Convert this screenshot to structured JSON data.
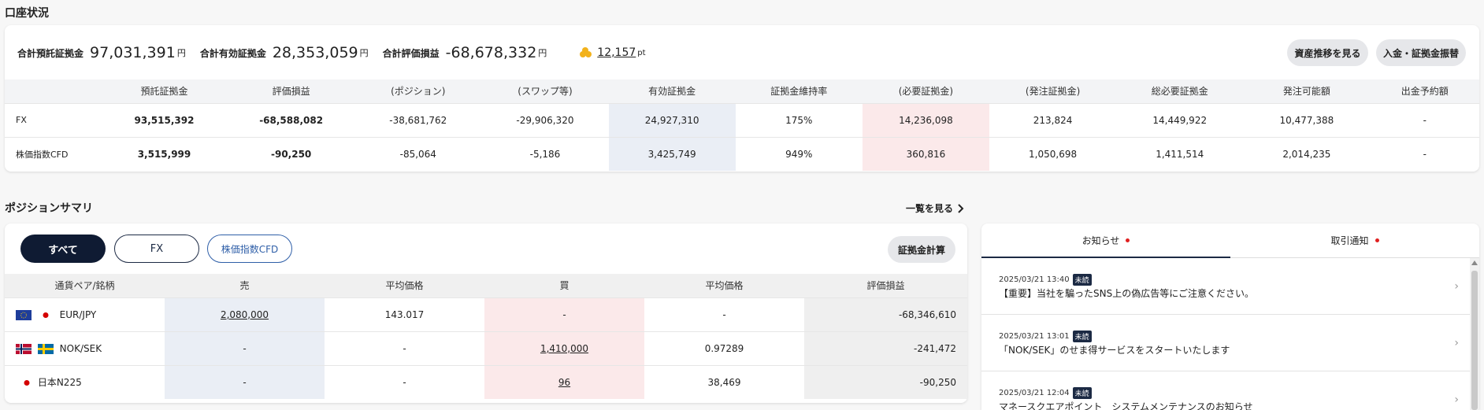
{
  "account": {
    "title": "口座状況",
    "summary": [
      {
        "label": "合計預託証拠金",
        "value": "97,031,391",
        "unit": "円"
      },
      {
        "label": "合計有効証拠金",
        "value": "28,353,059",
        "unit": "円"
      },
      {
        "label": "合計評価損益",
        "value": "-68,678,332",
        "unit": "円"
      }
    ],
    "points": {
      "value": "12,157",
      "unit": "pt",
      "icon": "coins-icon"
    },
    "buttons": {
      "asset_history": "資産推移を見る",
      "deposit_transfer": "入金・証拠金振替"
    },
    "headers": [
      "",
      "預託証拠金",
      "評価損益",
      "(ポジション)",
      "(スワップ等)",
      "有効証拠金",
      "証拠金維持率",
      "(必要証拠金)",
      "(発注証拠金)",
      "総必要証拠金",
      "発注可能額",
      "出金予約額"
    ],
    "rows": [
      {
        "name": "FX",
        "cells": [
          "93,515,392",
          "-68,588,082",
          "-38,681,762",
          "-29,906,320",
          "24,927,310",
          "175%",
          "14,236,098",
          "213,824",
          "14,449,922",
          "10,477,388",
          "-"
        ]
      },
      {
        "name": "株価指数CFD",
        "cells": [
          "3,515,999",
          "-90,250",
          "-85,064",
          "-5,186",
          "3,425,749",
          "949%",
          "360,816",
          "1,050,698",
          "1,411,514",
          "2,014,235",
          "-"
        ]
      }
    ]
  },
  "positions": {
    "title": "ポジションサマリ",
    "view_all": "一覧を見る",
    "filters": {
      "all": "すべて",
      "fx": "FX",
      "cfd": "株価指数CFD"
    },
    "calc_button": "証拠金計算",
    "headers": [
      "通貨ペア/銘柄",
      "売",
      "平均価格",
      "買",
      "平均価格",
      "評価損益"
    ],
    "rows": [
      {
        "pair": "EUR/JPY",
        "sell": "2,080,000",
        "sell_avg": "143.017",
        "buy": "-",
        "buy_avg": "-",
        "pl": "-68,346,610"
      },
      {
        "pair": "NOK/SEK",
        "sell": "-",
        "sell_avg": "-",
        "buy": "1,410,000",
        "buy_avg": "0.97289",
        "pl": "-241,472"
      },
      {
        "pair": "日本N225",
        "sell": "-",
        "sell_avg": "-",
        "buy": "96",
        "buy_avg": "38,469",
        "pl": "-90,250"
      }
    ]
  },
  "notices": {
    "tabs": [
      "お知らせ",
      "取引通知"
    ],
    "items": [
      {
        "date": "2025/03/21 13:40",
        "badge": "未読",
        "text": "【重要】当社を騙ったSNS上の偽広告等にご注意ください。"
      },
      {
        "date": "2025/03/21 13:01",
        "badge": "未読",
        "text": "「NOK/SEK」のせま得サービスをスタートいたします"
      },
      {
        "date": "2025/03/21 12:04",
        "badge": "未読",
        "text": "マネースクエアポイント　システムメンテナンスのお知らせ"
      }
    ]
  },
  "colors": {
    "navy": "#0f1b33",
    "accent_red": "#e02020",
    "margin_blue": "#eaeef5",
    "margin_pink": "#fbe9ea"
  }
}
